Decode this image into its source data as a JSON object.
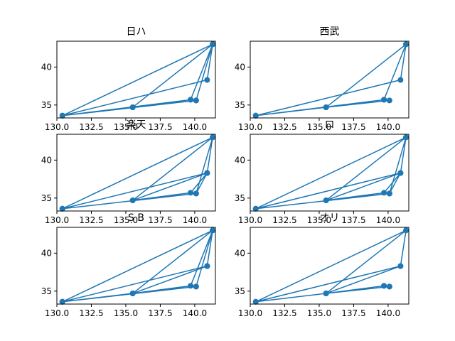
{
  "chart_data": [
    {
      "type": "line",
      "title": "日ハ",
      "xlim": [
        130,
        141.5
      ],
      "ylim": [
        33.3,
        43.4
      ],
      "xticks": [
        "130.0",
        "132.5",
        "135.0",
        "137.5",
        "140.0"
      ],
      "yticks": [
        "35",
        "40"
      ],
      "color": "#1f77b4",
      "series": [
        {
          "x": [
            141.3,
            140.9,
            130.4,
            141.3,
            135.5,
            141.3,
            139.7,
            141.3,
            140.1,
            135.5,
            139.7,
            130.4,
            141.3,
            135.5,
            140.1,
            130.4
          ],
          "y": [
            43.0,
            38.3,
            33.6,
            43.0,
            34.7,
            43.0,
            35.7,
            43.0,
            35.6,
            34.7,
            35.7,
            33.6,
            43.0,
            34.7,
            35.6,
            33.6
          ]
        }
      ]
    },
    {
      "type": "line",
      "title": "西武",
      "xlim": [
        130,
        141.5
      ],
      "ylim": [
        33.3,
        43.4
      ],
      "xticks": [
        "130.0",
        "132.5",
        "135.0",
        "137.5",
        "140.0"
      ],
      "yticks": [
        "35",
        "40"
      ],
      "color": "#1f77b4",
      "series": [
        {
          "x": [
            130.4,
            139.7,
            141.3,
            140.9,
            130.4,
            135.5,
            139.7,
            140.1,
            135.5,
            139.7,
            141.3,
            135.5,
            130.4
          ],
          "y": [
            33.6,
            35.7,
            43.0,
            38.3,
            33.6,
            34.7,
            35.7,
            35.6,
            34.7,
            35.7,
            43.0,
            34.7,
            33.6
          ]
        }
      ]
    },
    {
      "type": "line",
      "title": "楽天",
      "xlim": [
        130,
        141.5
      ],
      "ylim": [
        33.3,
        43.4
      ],
      "xticks": [
        "130.0",
        "132.5",
        "135.0",
        "137.5",
        "140.0"
      ],
      "yticks": [
        "35",
        "40"
      ],
      "color": "#1f77b4",
      "series": [
        {
          "x": [
            140.9,
            130.4,
            141.3,
            140.9,
            135.5,
            139.7,
            140.9,
            140.1,
            141.3,
            130.4,
            140.9,
            135.5,
            141.3,
            140.1,
            130.4
          ],
          "y": [
            38.3,
            33.6,
            43.0,
            38.3,
            34.7,
            35.7,
            38.3,
            35.6,
            43.0,
            33.6,
            38.3,
            34.7,
            43.0,
            35.6,
            33.6
          ]
        }
      ]
    },
    {
      "type": "line",
      "title": "ロ",
      "xlim": [
        130,
        141.5
      ],
      "ylim": [
        33.3,
        43.4
      ],
      "xticks": [
        "130.0",
        "132.5",
        "135.0",
        "137.5",
        "140.0"
      ],
      "yticks": [
        "35",
        "40"
      ],
      "color": "#1f77b4",
      "series": [
        {
          "x": [
            140.1,
            141.3,
            130.4,
            140.9,
            135.5,
            139.7,
            140.9,
            130.4,
            140.1,
            140.9,
            141.3,
            140.1,
            135.5,
            141.3
          ],
          "y": [
            35.6,
            43.0,
            33.6,
            38.3,
            34.7,
            35.7,
            38.3,
            33.6,
            35.6,
            38.3,
            43.0,
            35.6,
            34.7,
            43.0
          ]
        }
      ]
    },
    {
      "type": "line",
      "title": "S B",
      "xlim": [
        130,
        141.5
      ],
      "ylim": [
        33.3,
        43.4
      ],
      "xticks": [
        "130.0",
        "132.5",
        "135.0",
        "137.5",
        "140.0"
      ],
      "yticks": [
        "35",
        "40"
      ],
      "color": "#1f77b4",
      "series": [
        {
          "x": [
            130.4,
            141.3,
            140.9,
            130.4,
            140.9,
            135.5,
            139.7,
            141.3,
            140.1,
            130.4,
            140.9,
            135.5,
            141.3,
            140.1,
            135.5,
            130.4
          ],
          "y": [
            33.6,
            43.0,
            38.3,
            33.6,
            38.3,
            34.7,
            35.7,
            43.0,
            35.6,
            33.6,
            38.3,
            34.7,
            43.0,
            35.6,
            34.7,
            33.6
          ]
        }
      ]
    },
    {
      "type": "line",
      "title": "オリ",
      "xlim": [
        130,
        141.5
      ],
      "ylim": [
        33.3,
        43.4
      ],
      "xticks": [
        "130.0",
        "132.5",
        "135.0",
        "137.5",
        "140.0"
      ],
      "yticks": [
        "35",
        "40"
      ],
      "color": "#1f77b4",
      "series": [
        {
          "x": [
            135.5,
            141.3,
            140.9,
            130.4,
            135.5,
            139.7,
            140.1,
            135.5,
            140.9,
            141.3,
            130.4,
            135.5,
            140.1,
            139.7,
            135.5
          ],
          "y": [
            34.7,
            43.0,
            38.3,
            33.6,
            34.7,
            35.7,
            35.6,
            34.7,
            38.3,
            43.0,
            33.6,
            34.7,
            35.6,
            35.7,
            34.7
          ]
        }
      ]
    }
  ]
}
